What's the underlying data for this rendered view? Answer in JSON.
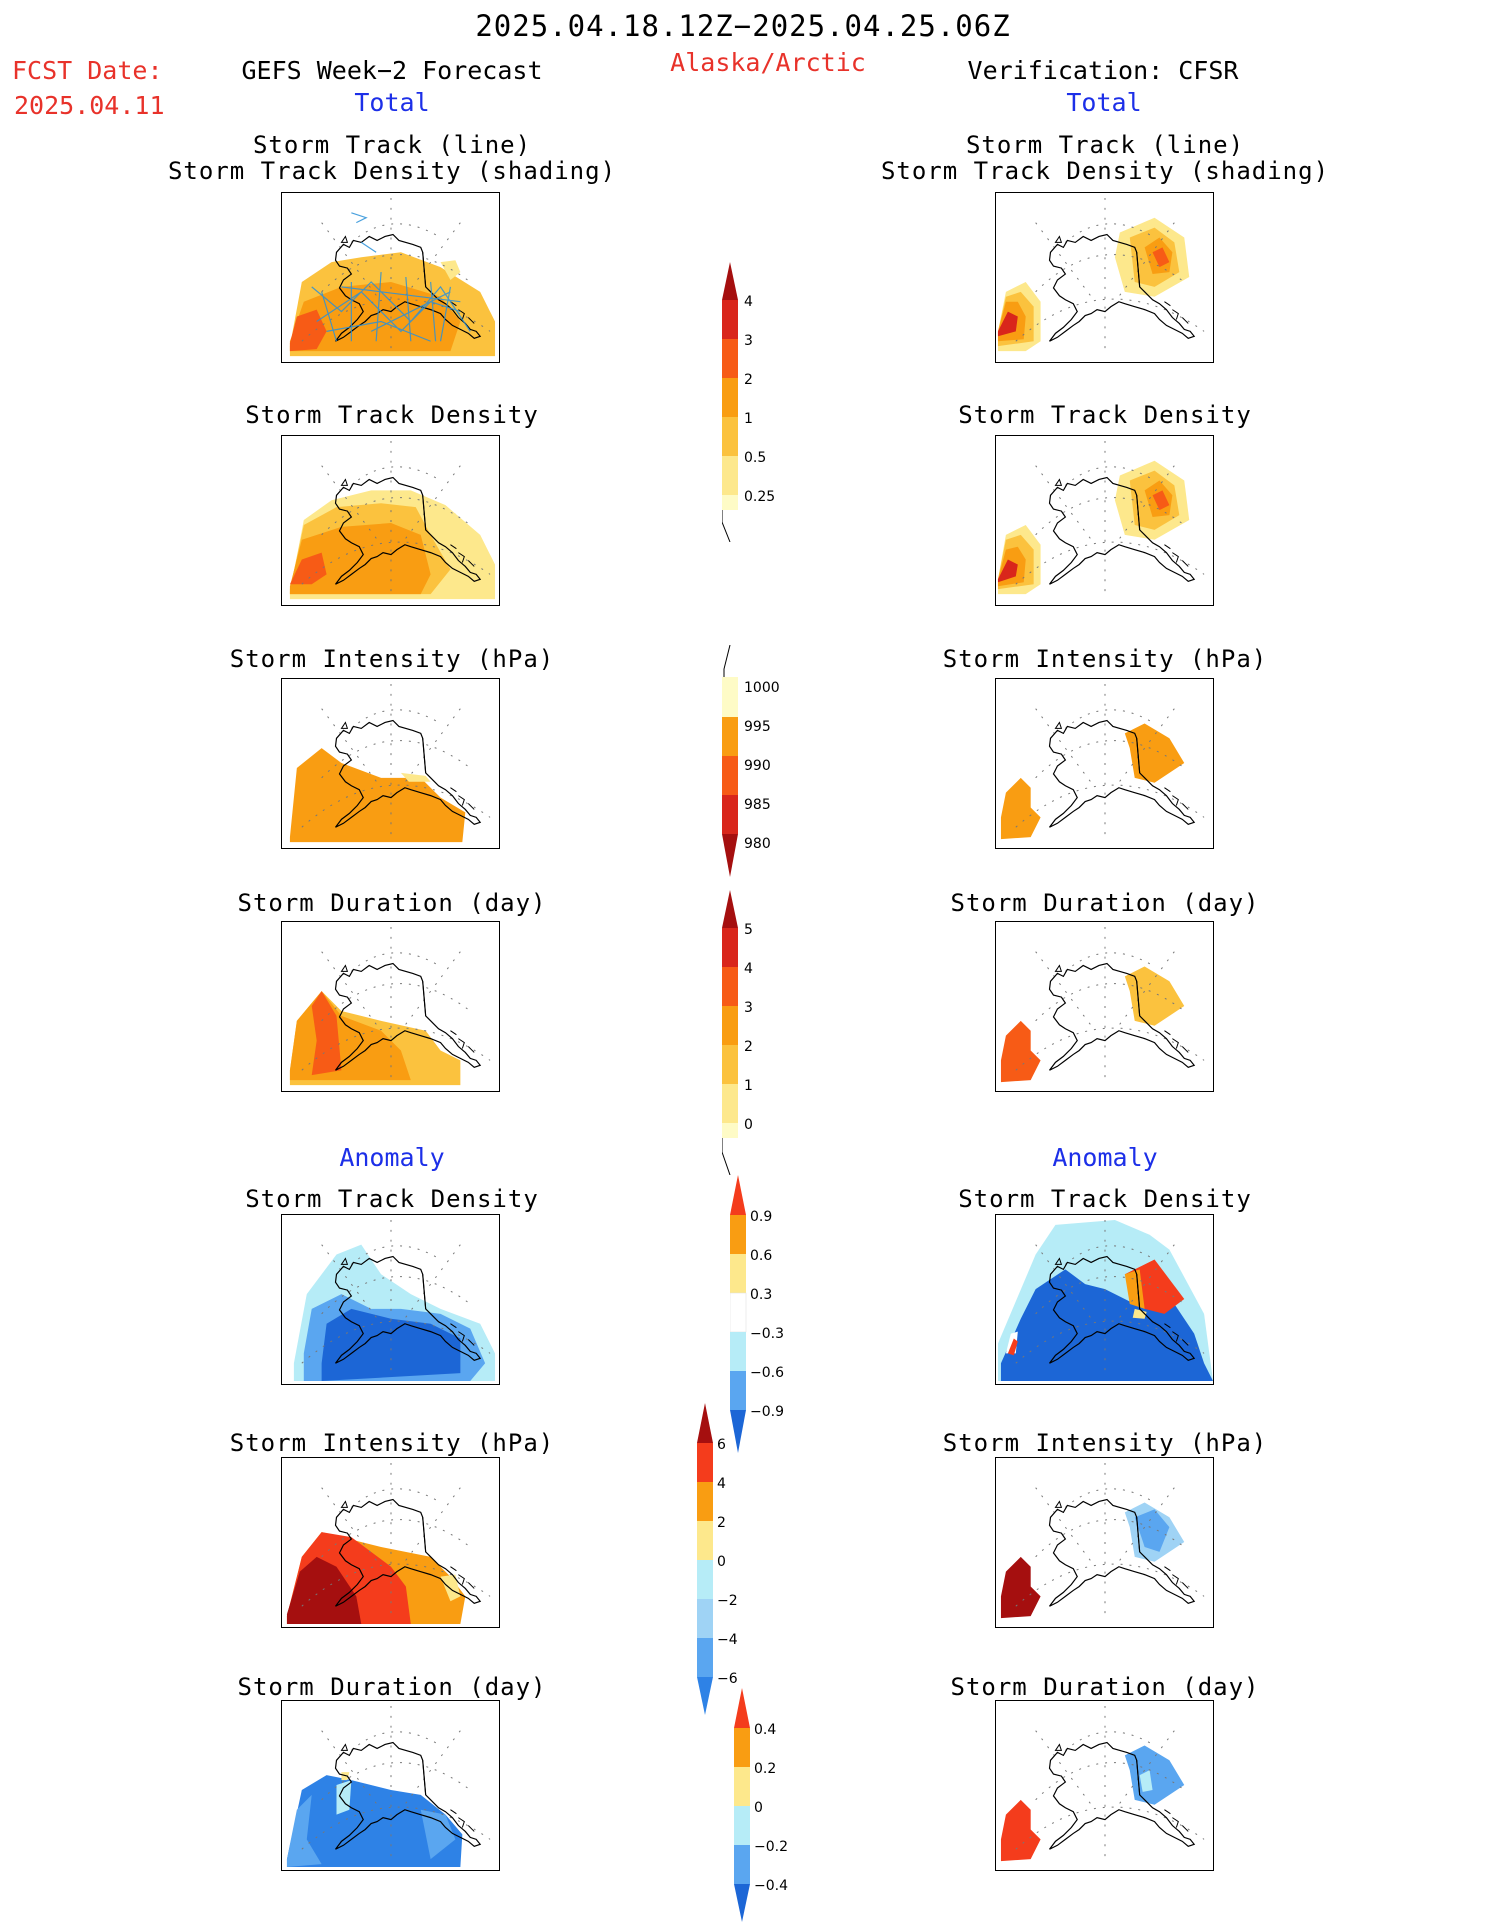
{
  "header": {
    "title": "2025.04.18.12Z−2025.04.25.06Z",
    "fcst_label": "FCST Date:",
    "fcst_date": "2025.04.11",
    "left_title": "GEFS Week−2 Forecast",
    "region": "Alaska/Arctic",
    "right_title": "Verification: CFSR",
    "left_total": "Total",
    "right_total": "Total",
    "left_anomaly": "Anomaly",
    "right_anomaly": "Anomaly"
  },
  "panels": {
    "track_line": "Storm Track (line)",
    "track_shading": "Storm Track Density (shading)",
    "track_density": "Storm Track Density",
    "intensity": "Storm Intensity (hPa)",
    "duration": "Storm Duration (day)"
  },
  "colorbars": {
    "density": {
      "labels": [
        "4",
        "3",
        "2",
        "1",
        "0.5",
        "0.25"
      ],
      "colors": [
        "#a50f0f",
        "#d9261b",
        "#f75b16",
        "#f99d12",
        "#fbc23e",
        "#fde88c",
        "#fefbc6"
      ]
    },
    "intensity": {
      "labels": [
        "1000",
        "995",
        "990",
        "985",
        "980"
      ],
      "colors": [
        "#fefbc6",
        "#f99d12",
        "#f75b16",
        "#d9261b",
        "#a50f0f"
      ]
    },
    "duration": {
      "labels": [
        "5",
        "4",
        "3",
        "2",
        "1",
        "0"
      ],
      "colors": [
        "#a50f0f",
        "#d9261b",
        "#f75b16",
        "#f99d12",
        "#fbc23e",
        "#fde88c",
        "#fefbc6"
      ]
    },
    "anom_density": {
      "labels": [
        "0.9",
        "0.6",
        "0.3",
        "−0.3",
        "−0.6",
        "−0.9"
      ],
      "colors": [
        "#f43c1c",
        "#f99d12",
        "#fde88c",
        "#ffffff",
        "#b6ecf7",
        "#5aa6f0",
        "#1c66d6"
      ]
    },
    "anom_intensity": {
      "labels": [
        "6",
        "4",
        "2",
        "0",
        "−2",
        "−4",
        "−6"
      ],
      "colors": [
        "#a50f0f",
        "#f43c1c",
        "#f99d12",
        "#fde88c",
        "#b6ecf7",
        "#9fd3f5",
        "#5aa6f0",
        "#2e82e6"
      ]
    },
    "anom_duration": {
      "labels": [
        "0.4",
        "0.2",
        "0",
        "−0.2",
        "−0.4"
      ],
      "colors": [
        "#f43c1c",
        "#f99d12",
        "#fde88c",
        "#b6ecf7",
        "#5aa6f0",
        "#1c66d6"
      ]
    }
  }
}
